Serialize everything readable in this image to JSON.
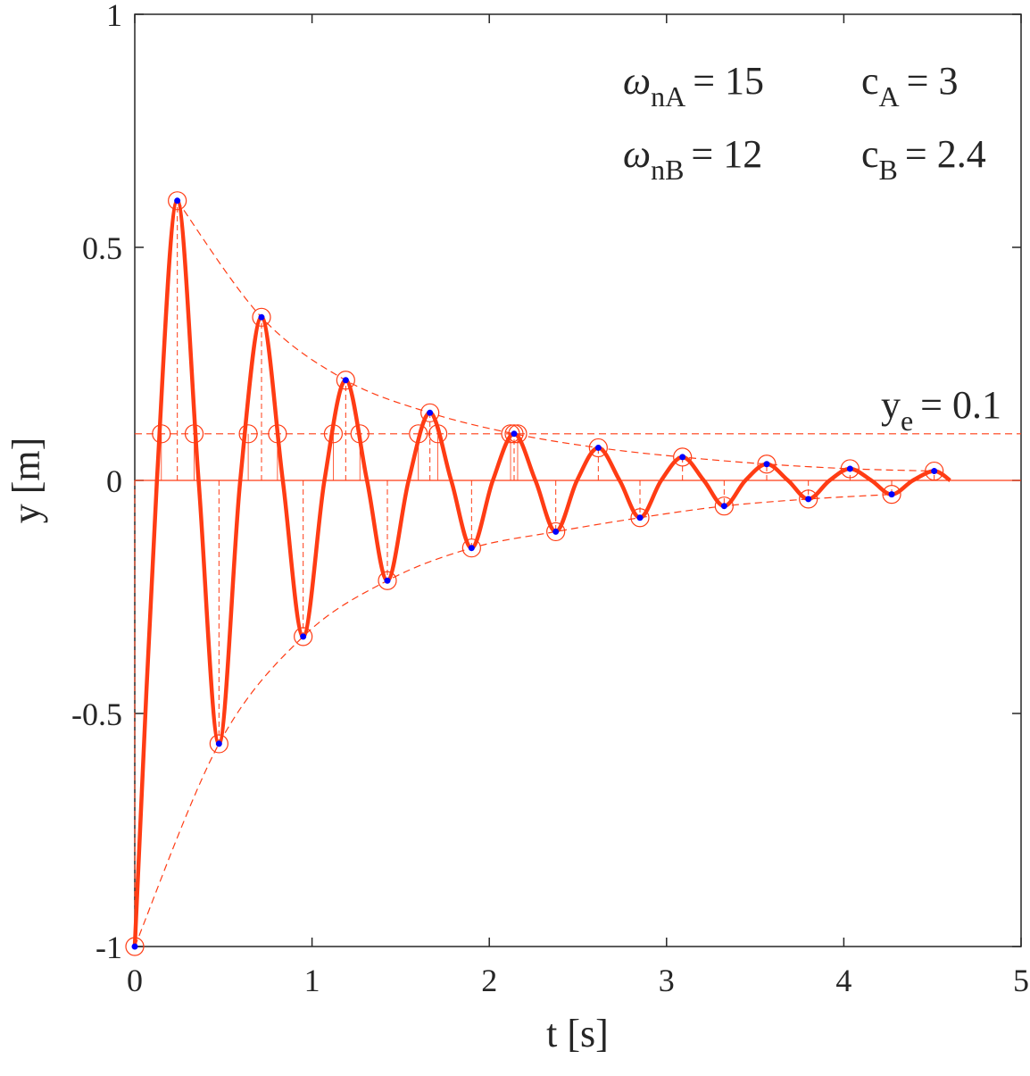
{
  "chart_data": {
    "type": "line",
    "xlabel": "t [s]",
    "ylabel": "y [m]",
    "xlim": [
      0,
      5
    ],
    "xticks": [
      0,
      1,
      2,
      3,
      4,
      5
    ],
    "ylim": [
      -1,
      1
    ],
    "yticks": [
      -1,
      -0.5,
      0,
      0.5,
      1
    ],
    "color": "#ff3c14",
    "marker_color": "#0000ff",
    "curve": {
      "x": [
        0,
        0.125,
        0.24,
        0.36,
        0.475,
        0.595,
        0.715,
        0.835,
        0.95,
        1.07,
        1.19,
        1.31,
        1.425,
        1.545,
        1.665,
        1.785,
        1.9,
        2.02,
        2.14,
        2.26,
        2.375,
        2.495,
        2.615,
        2.735,
        2.85,
        2.97,
        3.09,
        3.21,
        3.325,
        3.445,
        3.565,
        3.685,
        3.8,
        3.92,
        4.035,
        4.155,
        4.27,
        4.39,
        4.51,
        4.6
      ],
      "y": [
        -1,
        0,
        0.6,
        0,
        -0.565,
        0,
        0.35,
        0,
        -0.335,
        0,
        0.215,
        0,
        -0.215,
        0,
        0.145,
        0,
        -0.145,
        0,
        0.1,
        0,
        -0.11,
        0,
        0.07,
        0,
        -0.08,
        0,
        0.05,
        0,
        -0.055,
        0,
        0.035,
        0,
        -0.04,
        0,
        0.025,
        0,
        -0.03,
        0,
        0.02,
        0
      ]
    },
    "extrema": {
      "x": [
        0,
        0.24,
        0.475,
        0.715,
        0.95,
        1.19,
        1.425,
        1.665,
        1.9,
        2.14,
        2.375,
        2.615,
        2.85,
        3.09,
        3.325,
        3.565,
        3.8,
        4.035,
        4.27,
        4.51
      ],
      "y": [
        -1,
        0.6,
        -0.565,
        0.35,
        -0.335,
        0.215,
        -0.215,
        0.145,
        -0.145,
        0.1,
        -0.11,
        0.07,
        -0.08,
        0.05,
        -0.055,
        0.035,
        -0.04,
        0.025,
        -0.03,
        0.02
      ]
    },
    "threshold": {
      "value": 0.1,
      "base": "y",
      "sub": "e",
      "text": "= 0.1",
      "crossings": [
        0.15,
        0.335,
        0.64,
        0.805,
        1.12,
        1.27,
        1.6,
        1.71,
        2.12,
        2.16
      ]
    },
    "annotations": [
      {
        "base": "ω",
        "sub": "nA",
        "text": "= 15"
      },
      {
        "base": "c",
        "sub": "A",
        "text": "= 3"
      },
      {
        "base": "ω",
        "sub": "nB",
        "text": "= 12"
      },
      {
        "base": "c",
        "sub": "B",
        "text": "= 2.4"
      }
    ]
  }
}
